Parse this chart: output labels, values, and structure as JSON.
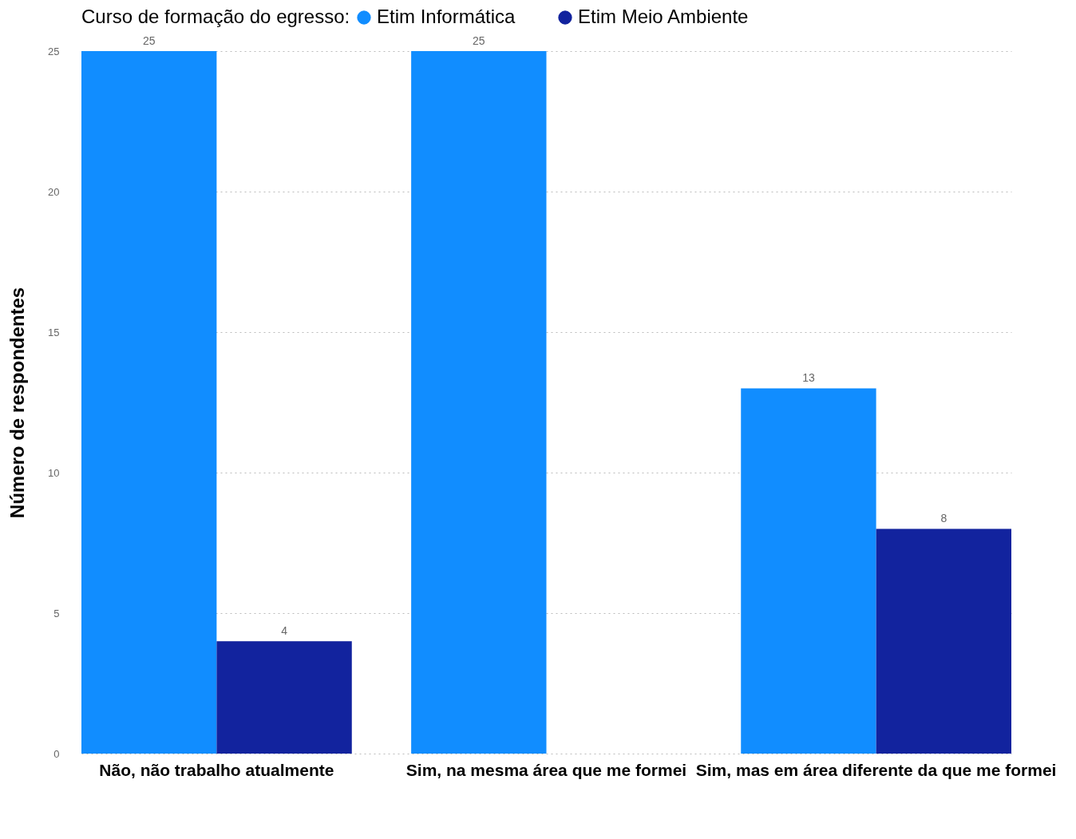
{
  "chart_data": {
    "type": "bar",
    "legend_title": "Curso de formação do egresso:",
    "ylabel": "Número de respondentes",
    "categories": [
      "Não, não trabalho atualmente",
      "Sim, na mesma área que me formei",
      "Sim, mas em área diferente da que me formei"
    ],
    "series": [
      {
        "name": "Etim Informática",
        "color": "#118dff",
        "values": [
          25,
          25,
          13
        ]
      },
      {
        "name": "Etim Meio Ambiente",
        "color": "#12239e",
        "values": [
          4,
          null,
          8
        ]
      }
    ],
    "ylim": [
      0,
      25
    ],
    "yticks": [
      0,
      5,
      10,
      15,
      20,
      25
    ],
    "grid": "y",
    "legend": "top left",
    "data_labels": true
  }
}
